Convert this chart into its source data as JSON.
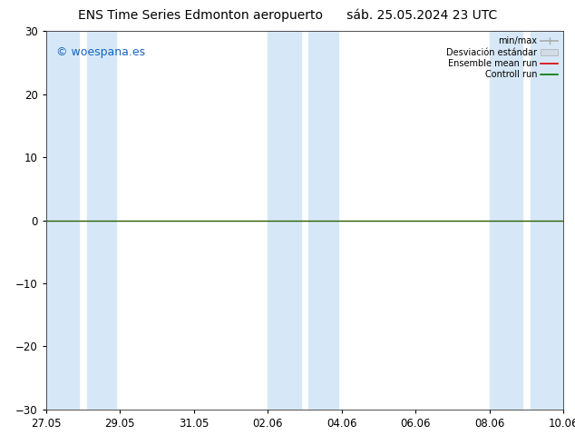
{
  "title": "ENS Time Series Edmonton aeropuerto",
  "subtitle": "sáb. 25.05.2024 23 UTC",
  "watermark": "© woespana.es",
  "ylim": [
    -30,
    30
  ],
  "yticks": [
    -30,
    -20,
    -10,
    0,
    10,
    20,
    30
  ],
  "xlabel_dates": [
    "27.05",
    "29.05",
    "31.05",
    "02.06",
    "04.06",
    "06.06",
    "08.06",
    "10.06"
  ],
  "x_tick_pos": [
    0,
    2,
    4,
    6,
    8,
    10,
    12,
    14
  ],
  "xlim": [
    0,
    14
  ],
  "background_color": "#ffffff",
  "plot_bg_color": "#ffffff",
  "shade_color": "#d6e8f7",
  "shade_regions": [
    [
      0,
      0.9
    ],
    [
      1.1,
      1.9
    ],
    [
      6,
      6.9
    ],
    [
      7.1,
      7.9
    ],
    [
      12,
      12.9
    ],
    [
      13.1,
      14
    ]
  ],
  "zero_line_color": "#2a6000",
  "legend_min_max_color": "#aaaaaa",
  "legend_std_color": "#d0dde8",
  "legend_ensemble_color": "#dd0000",
  "legend_control_color": "#007700",
  "title_fontsize": 10,
  "tick_fontsize": 8.5,
  "watermark_color": "#1565c0",
  "watermark_fontsize": 9
}
